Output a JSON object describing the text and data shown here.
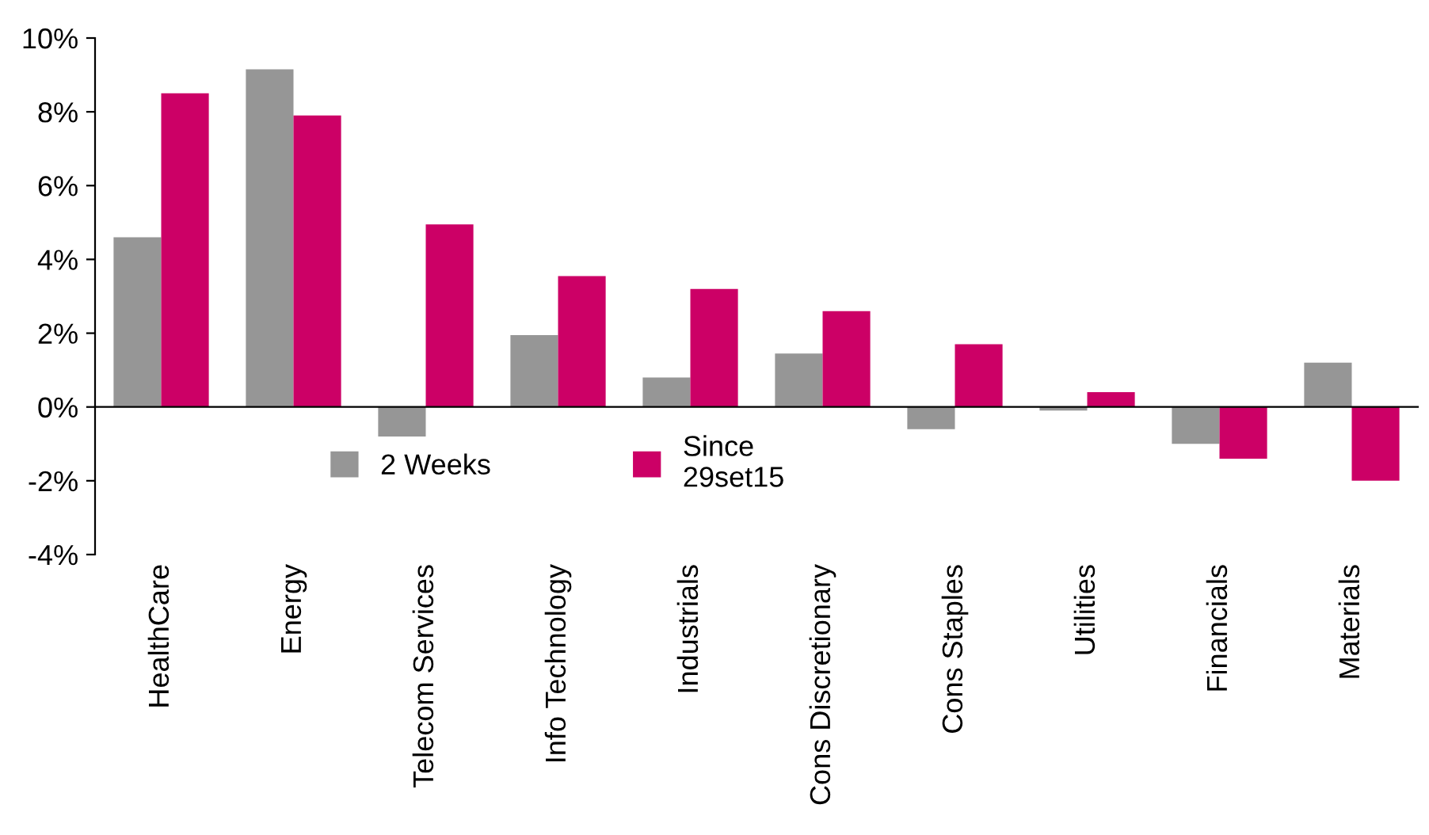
{
  "chart_data": {
    "type": "bar",
    "categories": [
      "HealthCare",
      "Energy",
      "Telecom Services",
      "Info Technology",
      "Industrials",
      "Cons Discretionary",
      "Cons Staples",
      "Utilities",
      "Financials",
      "Materials"
    ],
    "series": [
      {
        "name": "2 Weeks",
        "color": "#969696",
        "values": [
          4.6,
          9.15,
          -0.8,
          1.95,
          0.8,
          1.45,
          -0.6,
          -0.1,
          -1.0,
          1.2
        ]
      },
      {
        "name": "Since\n29set15",
        "color": "#cc0066",
        "values": [
          8.5,
          7.9,
          4.95,
          3.55,
          3.2,
          2.6,
          1.7,
          0.4,
          -1.4,
          -2.0
        ]
      }
    ],
    "ylim": [
      -4,
      10
    ],
    "yticks": [
      {
        "value": -4,
        "label": "-4%"
      },
      {
        "value": -2,
        "label": "-2%"
      },
      {
        "value": 0,
        "label": "0%"
      },
      {
        "value": 2,
        "label": "2%"
      },
      {
        "value": 4,
        "label": "4%"
      },
      {
        "value": 6,
        "label": "6%"
      },
      {
        "value": 8,
        "label": "8%"
      },
      {
        "value": 10,
        "label": "10%"
      }
    ],
    "legend": "bottom"
  }
}
